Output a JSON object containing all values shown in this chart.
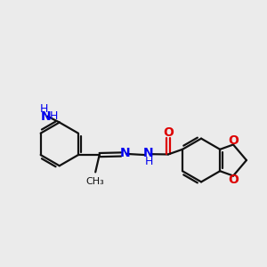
{
  "bg_color": "#ebebeb",
  "bond_color": "#111111",
  "n_color": "#0000ee",
  "o_color": "#dd0000",
  "font_size": 9,
  "line_width": 1.6,
  "figsize": [
    3.0,
    3.0
  ],
  "dpi": 100,
  "xlim": [
    0.0,
    10.0
  ],
  "ylim": [
    2.5,
    8.5
  ]
}
